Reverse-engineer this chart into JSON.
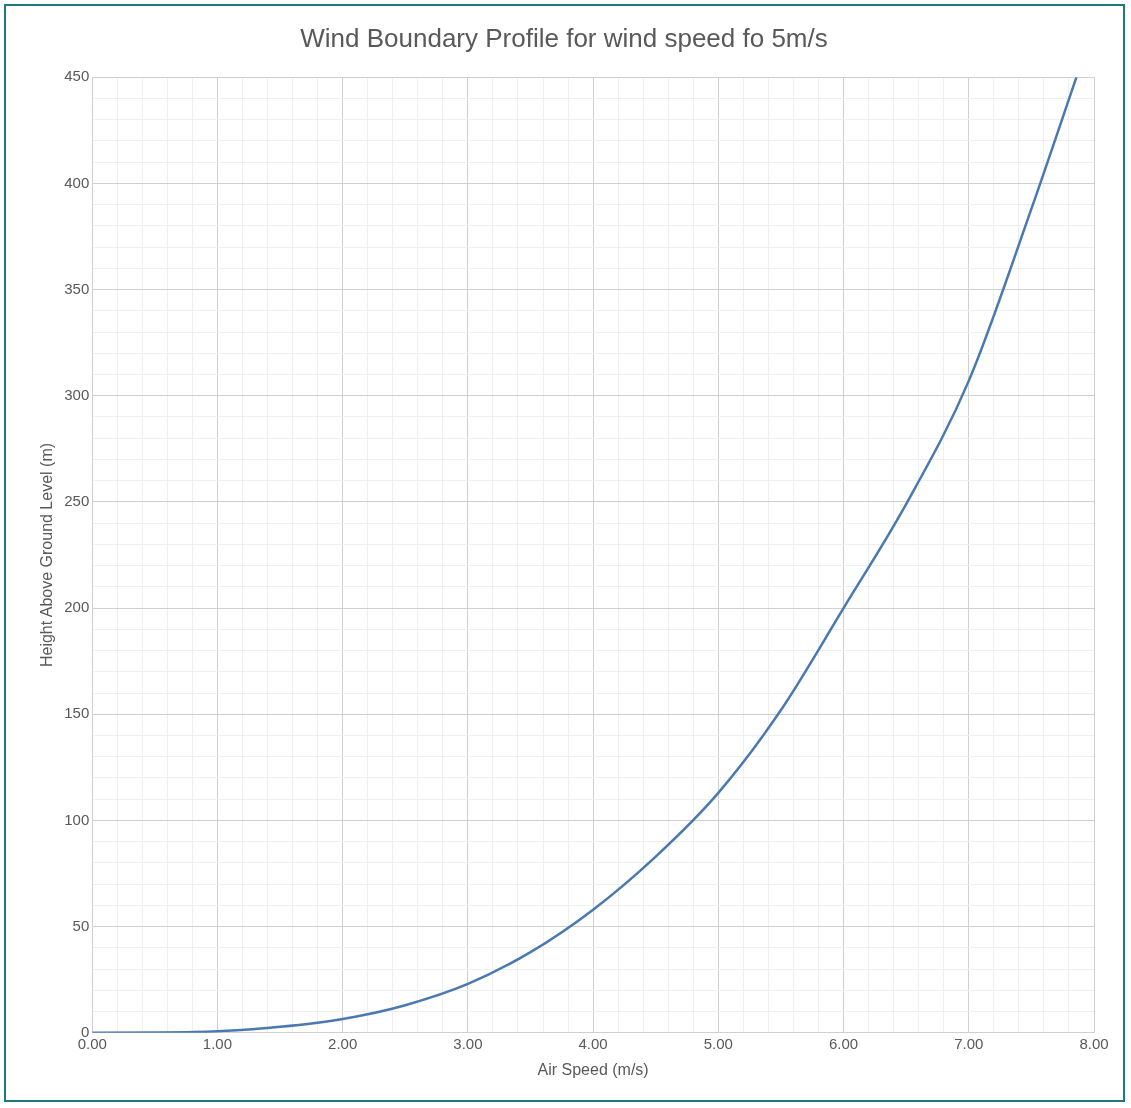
{
  "chart_data": {
    "type": "line",
    "title": "Wind Boundary Profile for wind speed fo 5m/s",
    "xlabel": "Air Speed (m/s)",
    "ylabel": "Height Above Ground Level (m)",
    "x": [
      0,
      0.5,
      1,
      1.5,
      2,
      2.5,
      3,
      3.5,
      4,
      4.5,
      5,
      5.5,
      6,
      6.5,
      7,
      7.5,
      7.86
    ],
    "series": [
      {
        "color": "#4a78b0",
        "values": [
          0,
          0.1,
          0.7,
          2.8,
          6.5,
          13,
          23,
          38,
          58,
          83,
          113,
          152,
          200,
          249,
          307,
          388,
          450
        ]
      }
    ],
    "xlim": [
      0,
      8
    ],
    "ylim": [
      0,
      450
    ],
    "xticks": [
      {
        "value": 0,
        "label": "0.00"
      },
      {
        "value": 1,
        "label": "1.00"
      },
      {
        "value": 2,
        "label": "2.00"
      },
      {
        "value": 3,
        "label": "3.00"
      },
      {
        "value": 4,
        "label": "4.00"
      },
      {
        "value": 5,
        "label": "5.00"
      },
      {
        "value": 6,
        "label": "6.00"
      },
      {
        "value": 7,
        "label": "7.00"
      },
      {
        "value": 8,
        "label": "8.00"
      }
    ],
    "yticks": [
      0,
      50,
      100,
      150,
      200,
      250,
      300,
      350,
      400,
      450
    ],
    "grid": true,
    "marker": "none",
    "line_style": "solid",
    "legend": false
  }
}
